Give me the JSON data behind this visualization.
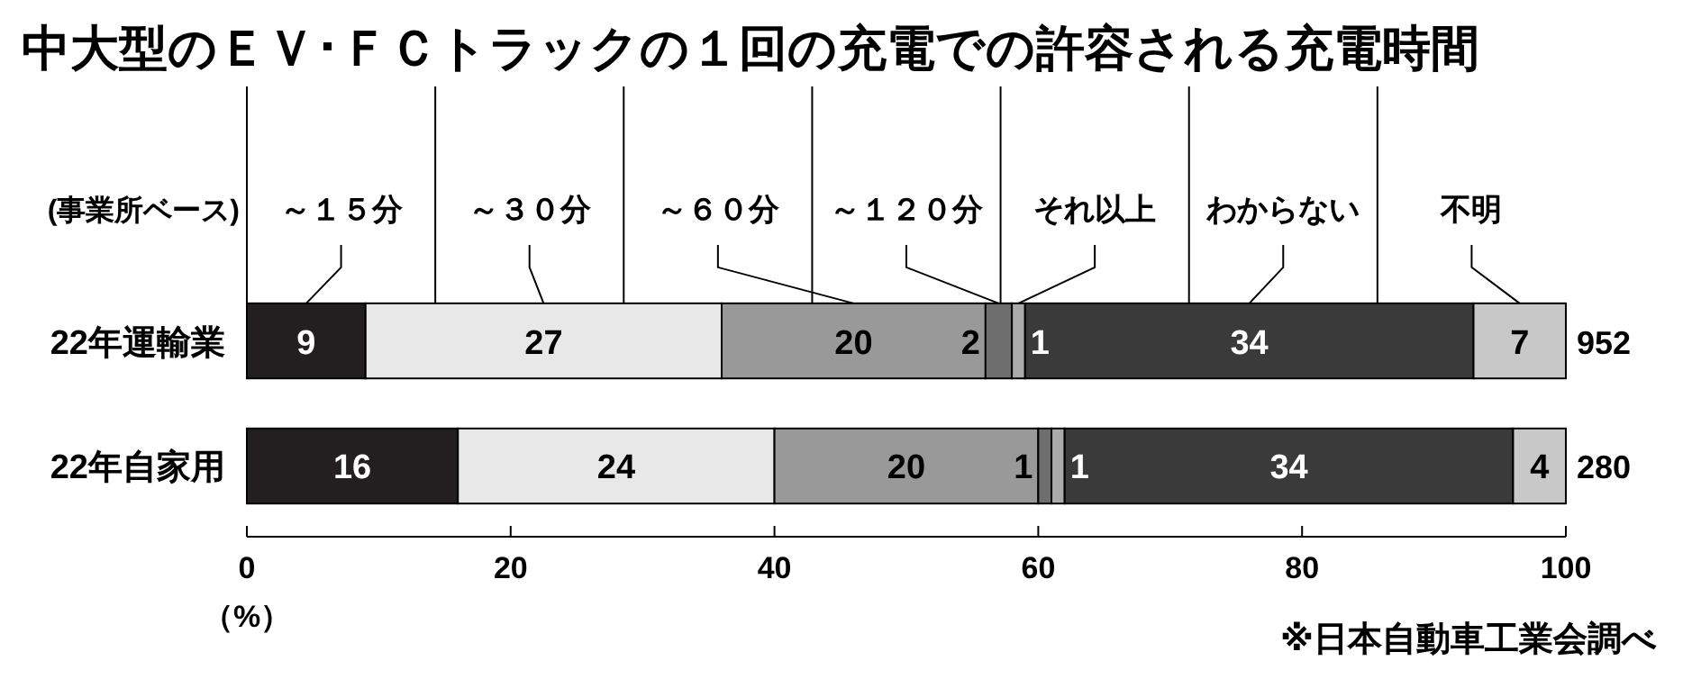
{
  "chart_data": {
    "type": "bar",
    "orientation": "horizontal",
    "stacked": true,
    "title": "中大型のＥＶ･ＦＣトラックの１回の充電での許容される充電時間",
    "legend_title": "(事業所ベース)",
    "xlabel": "（%）",
    "categories": [
      "22年運輸業",
      "22年自家用"
    ],
    "series": [
      {
        "name": "～１５分",
        "color": "#231f20",
        "values": [
          9,
          16
        ]
      },
      {
        "name": "～３０分",
        "color": "#e8e8e8",
        "values": [
          27,
          24
        ]
      },
      {
        "name": "～６０分",
        "color": "#999999",
        "values": [
          20,
          20
        ]
      },
      {
        "name": "～１２０分",
        "color": "#6e6e6e",
        "values": [
          2,
          1
        ]
      },
      {
        "name": "それ以上",
        "color": "#aaaaaa",
        "values": [
          1,
          1
        ]
      },
      {
        "name": "わからない",
        "color": "#3a3a3a",
        "values": [
          34,
          34
        ]
      },
      {
        "name": "不明",
        "color": "#c8c8c8",
        "values": [
          7,
          4
        ]
      }
    ],
    "xlim": [
      0,
      100
    ],
    "xticks": [
      0,
      20,
      40,
      60,
      80,
      100
    ],
    "data_labels": true,
    "legend": "top",
    "annotations": [
      "※日本自動車工業会調べ",
      {
        "text": "952",
        "x": 100,
        "y": "22年運輸業"
      },
      {
        "text": "280",
        "x": 100,
        "y": "22年自家用"
      }
    ]
  }
}
